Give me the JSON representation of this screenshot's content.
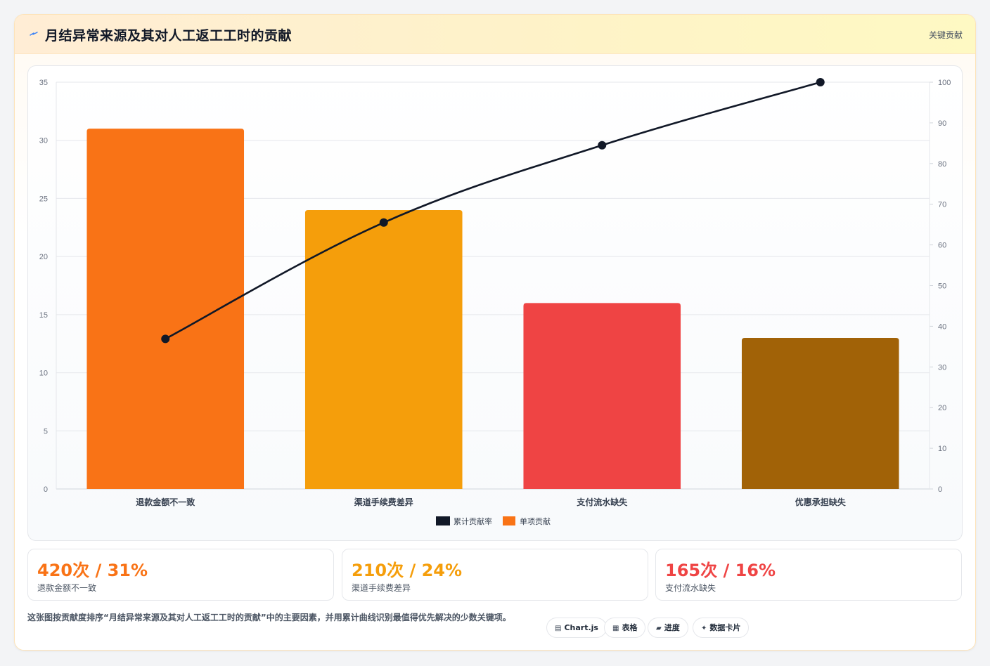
{
  "header": {
    "title": "月结异常来源及其对人工返工工时的贡献",
    "tag": "关键贡献",
    "icon": "lightning-icon"
  },
  "chart_data": {
    "type": "bar",
    "categories": [
      "退款金额不一致",
      "渠道手续费差异",
      "支付流水缺失",
      "优惠承担缺失"
    ],
    "series": [
      {
        "name": "单项贡献",
        "type": "bar",
        "axis": "left",
        "values": [
          31,
          24,
          16,
          13
        ]
      },
      {
        "name": "累计贡献率",
        "type": "line",
        "axis": "right",
        "values": [
          36.9,
          65.5,
          84.5,
          100
        ]
      }
    ],
    "bar_colors": [
      "#f97316",
      "#f59e0b",
      "#ef4444",
      "#a16207"
    ],
    "line_color": "#111827",
    "y_left": {
      "min": 0,
      "max": 35,
      "step": 5
    },
    "y_right": {
      "min": 0,
      "max": 100,
      "step": 10
    },
    "legend": [
      "累计贡献率",
      "单项贡献"
    ],
    "legend_position": "bottom",
    "grid": true
  },
  "stats": [
    {
      "value": "420次 / 31%",
      "label": "退款金额不一致",
      "color": "#f97316"
    },
    {
      "value": "210次 / 24%",
      "label": "渠道手续费差异",
      "color": "#f59e0b"
    },
    {
      "value": "165次 / 16%",
      "label": "支付流水缺失",
      "color": "#ef4444"
    }
  ],
  "description": "这张图按贡献度排序“月结异常来源及其对人工返工工时的贡献”中的主要因素，并用累计曲线识别最值得优先解决的少数关键项。",
  "chips": [
    {
      "label": "Chart.js",
      "icon": "chart-icon",
      "glyph": "▤"
    },
    {
      "label": "表格",
      "icon": "table-icon",
      "glyph": "▦"
    },
    {
      "label": "进度",
      "icon": "progress-icon",
      "glyph": "▰"
    },
    {
      "label": "数据卡片",
      "icon": "sparkle-icon",
      "glyph": "✦"
    }
  ]
}
